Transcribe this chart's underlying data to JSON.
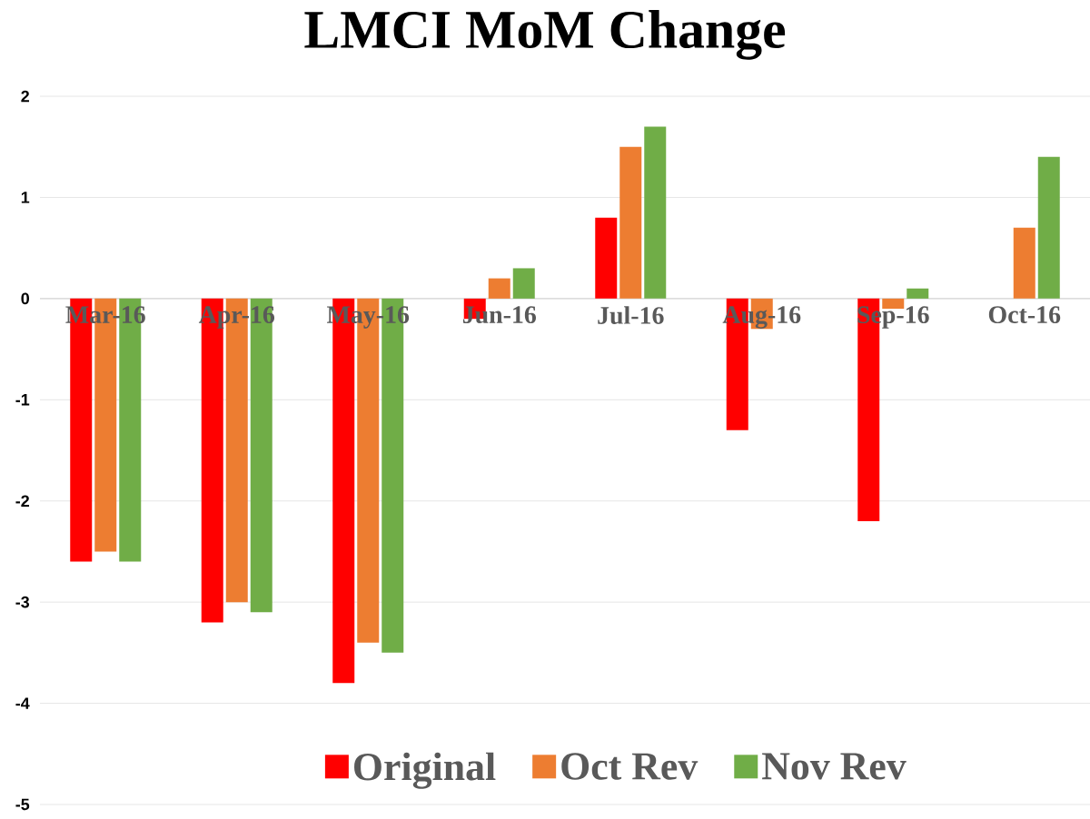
{
  "chart_data": {
    "type": "bar",
    "title": "LMCI MoM Change",
    "categories": [
      "Mar-16",
      "Apr-16",
      "May-16",
      "Jun-16",
      "Jul-16",
      "Aug-16",
      "Sep-16",
      "Oct-16"
    ],
    "series": [
      {
        "name": "Original",
        "color": "#ff0000",
        "values": [
          -2.6,
          -3.2,
          -3.8,
          -0.2,
          0.8,
          -1.3,
          -2.2,
          null
        ]
      },
      {
        "name": "Oct Rev",
        "color": "#ed7d31",
        "values": [
          -2.5,
          -3.0,
          -3.4,
          0.2,
          1.5,
          -0.3,
          -0.1,
          0.7
        ]
      },
      {
        "name": "Nov Rev",
        "color": "#70ad47",
        "values": [
          -2.6,
          -3.1,
          -3.5,
          0.3,
          1.7,
          null,
          0.1,
          1.4
        ]
      }
    ],
    "ylim": [
      -5,
      2
    ],
    "yticks": [
      -5,
      -4,
      -3,
      -2,
      -1,
      0,
      1,
      2
    ],
    "grid": "y",
    "legend": "bottom"
  }
}
